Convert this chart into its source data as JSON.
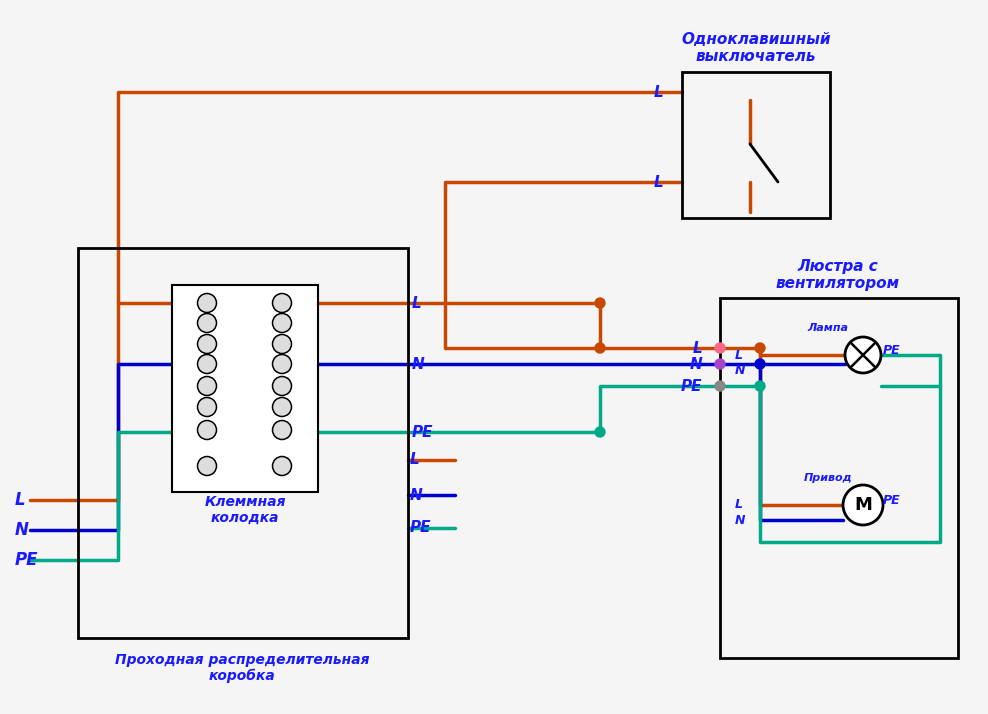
{
  "bg_color": "#f5f5f5",
  "orange": "#c84800",
  "blue": "#0000cc",
  "green": "#00aa88",
  "black": "#000000",
  "btxt": "#1a1aff",
  "title_sw": "Одноклавишный\nвыключатель",
  "title_ch": "Люстра с\nвентилятором",
  "title_tb": "Клеммная\nколодка",
  "title_jb": "Проходная распределительная\nкоробка",
  "lamp_label": "Лампа",
  "motor_label": "Привод"
}
